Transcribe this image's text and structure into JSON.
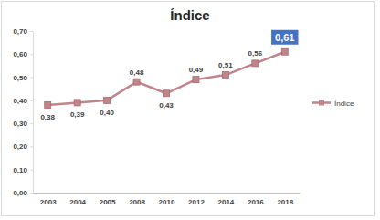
{
  "chart_data": {
    "type": "line",
    "title": "Índice",
    "categories": [
      "2003",
      "2004",
      "2005",
      "2008",
      "2010",
      "2012",
      "2014",
      "2016",
      "2018"
    ],
    "series": [
      {
        "name": "Índice",
        "color": "#c0858a",
        "marker": "square",
        "values": [
          0.38,
          0.39,
          0.4,
          0.48,
          0.43,
          0.49,
          0.51,
          0.56,
          0.61
        ],
        "value_labels": [
          "0,38",
          "0,39",
          "0,40",
          "0,48",
          "0,43",
          "0,49",
          "0,51",
          "0,56",
          "0,61"
        ]
      }
    ],
    "ylim": [
      0,
      0.7
    ],
    "yticks": [
      {
        "value": 0,
        "label": "0,00"
      },
      {
        "value": 0.1,
        "label": "0,10"
      },
      {
        "value": 0.2,
        "label": "0,20"
      },
      {
        "value": 0.3,
        "label": "0,30"
      },
      {
        "value": 0.4,
        "label": "0,40"
      },
      {
        "value": 0.5,
        "label": "0,50"
      },
      {
        "value": 0.6,
        "label": "0,60"
      },
      {
        "value": 0.7,
        "label": "0,70"
      }
    ],
    "grid": false,
    "legend": "right",
    "data_labels": true
  }
}
